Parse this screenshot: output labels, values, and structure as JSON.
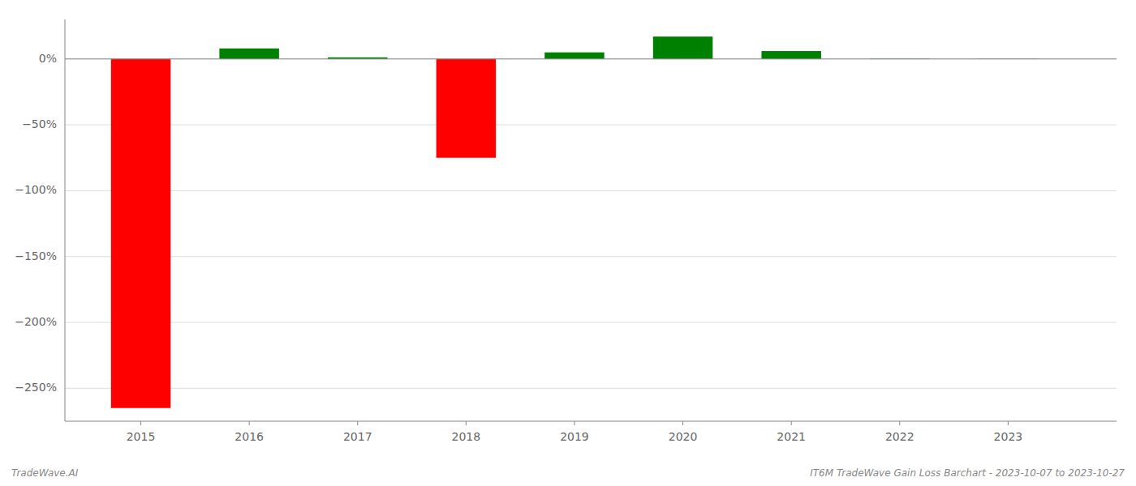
{
  "chart_data": {
    "type": "bar",
    "x": [
      2015,
      2016,
      2017,
      2018,
      2019,
      2020,
      2021,
      2022,
      2023
    ],
    "values": [
      -265,
      8,
      1.2,
      -75,
      5,
      17,
      6,
      0.3,
      0.2
    ],
    "colors": [
      "#ff0000",
      "#008000",
      "#008000",
      "#ff0000",
      "#008000",
      "#008000",
      "#008000",
      "#008000",
      "#008000"
    ],
    "xlim": [
      2014.3,
      2024.0
    ],
    "xticks": [
      2015,
      2016,
      2017,
      2018,
      2019,
      2020,
      2021,
      2022,
      2023
    ],
    "ylim": [
      -275,
      30
    ],
    "yticks": [
      {
        "value": 0,
        "label": "0%"
      },
      {
        "value": -50,
        "label": "−50%"
      },
      {
        "value": -100,
        "label": "−100%"
      },
      {
        "value": -150,
        "label": "−150%"
      },
      {
        "value": -200,
        "label": "−200%"
      },
      {
        "value": -250,
        "label": "−250%"
      }
    ],
    "grid": true,
    "annotations": [
      "TradeWave.AI",
      "IT6M TradeWave Gain Loss Barchart - 2023-10-07 to 2023-10-27"
    ]
  }
}
